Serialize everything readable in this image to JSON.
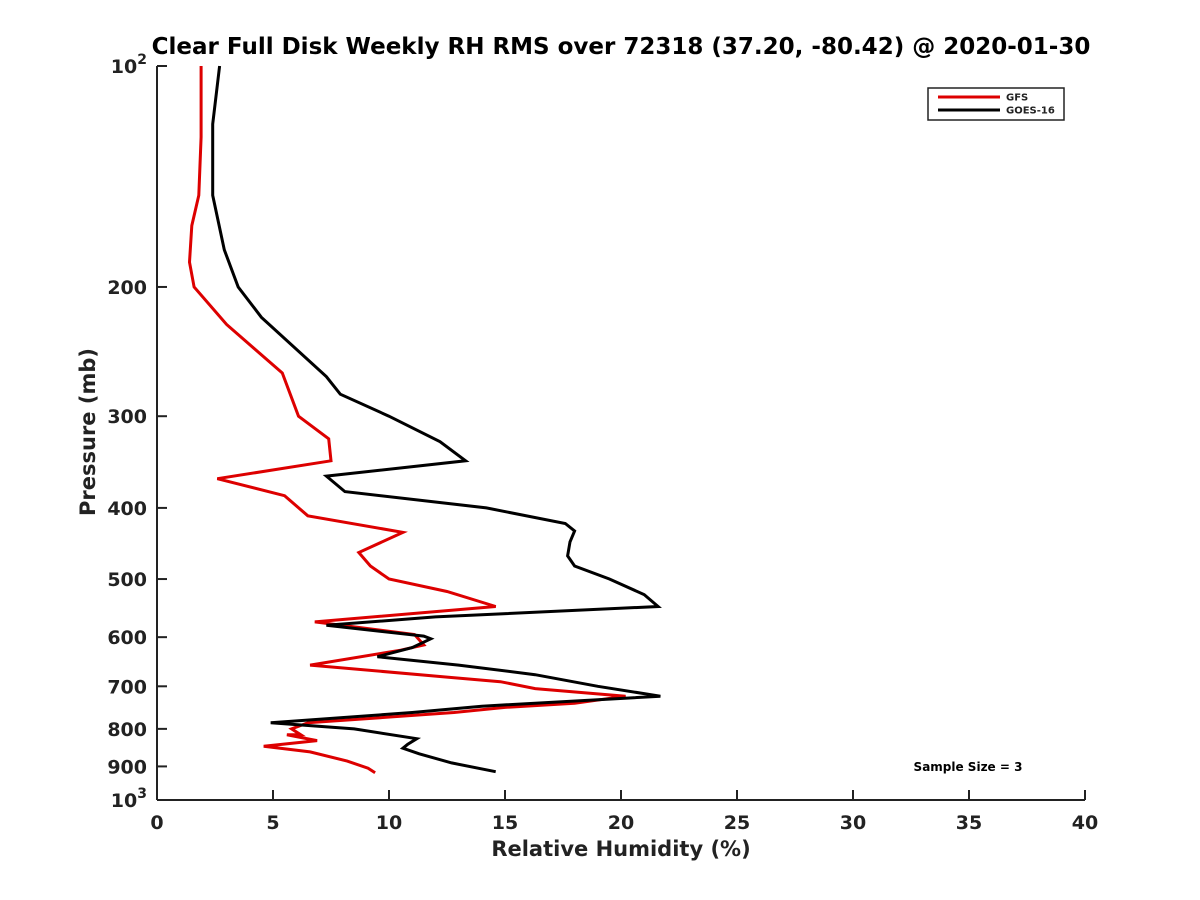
{
  "chart_data": {
    "type": "line",
    "title": "Clear Full Disk Weekly RH RMS over 72318 (37.20, -80.42) @ 2020-01-30",
    "xlabel": "Relative Humidity (%)",
    "ylabel": "Pressure (mb)",
    "xlim": [
      0,
      40
    ],
    "ylim": [
      100,
      1000
    ],
    "y_scale": "log",
    "y_reversed": true,
    "x_ticks": [
      0,
      5,
      10,
      15,
      20,
      25,
      30,
      35,
      40
    ],
    "x_tick_labels": [
      "0",
      "5",
      "10",
      "15",
      "20",
      "25",
      "30",
      "35",
      "40"
    ],
    "y_ticks": [
      100,
      200,
      300,
      400,
      500,
      600,
      700,
      800,
      900,
      1000
    ],
    "y_tick_labels": [
      {
        "base": "10",
        "exp": "2"
      },
      {
        "base": "200",
        "exp": ""
      },
      {
        "base": "300",
        "exp": ""
      },
      {
        "base": "400",
        "exp": ""
      },
      {
        "base": "500",
        "exp": ""
      },
      {
        "base": "600",
        "exp": ""
      },
      {
        "base": "700",
        "exp": ""
      },
      {
        "base": "800",
        "exp": ""
      },
      {
        "base": "900",
        "exp": ""
      },
      {
        "base": "10",
        "exp": "3"
      }
    ],
    "grid": false,
    "legend_position": "top-right",
    "annotation": "Sample Size = 3",
    "series": [
      {
        "name": "GFS",
        "color": "#dd0000",
        "points": [
          {
            "x": 1.9,
            "y": 100
          },
          {
            "x": 1.9,
            "y": 125
          },
          {
            "x": 1.8,
            "y": 150
          },
          {
            "x": 1.5,
            "y": 165
          },
          {
            "x": 1.4,
            "y": 185
          },
          {
            "x": 1.6,
            "y": 200
          },
          {
            "x": 3.0,
            "y": 225
          },
          {
            "x": 5.4,
            "y": 262
          },
          {
            "x": 6.1,
            "y": 300
          },
          {
            "x": 7.4,
            "y": 322
          },
          {
            "x": 7.5,
            "y": 345
          },
          {
            "x": 2.6,
            "y": 365
          },
          {
            "x": 5.5,
            "y": 385
          },
          {
            "x": 6.5,
            "y": 410
          },
          {
            "x": 10.6,
            "y": 432
          },
          {
            "x": 8.7,
            "y": 460
          },
          {
            "x": 9.2,
            "y": 480
          },
          {
            "x": 10.0,
            "y": 500
          },
          {
            "x": 12.5,
            "y": 520
          },
          {
            "x": 14.6,
            "y": 545
          },
          {
            "x": 6.8,
            "y": 572
          },
          {
            "x": 11.1,
            "y": 595
          },
          {
            "x": 11.5,
            "y": 615
          },
          {
            "x": 10.5,
            "y": 625
          },
          {
            "x": 6.6,
            "y": 655
          },
          {
            "x": 12.5,
            "y": 680
          },
          {
            "x": 14.8,
            "y": 690
          },
          {
            "x": 16.3,
            "y": 705
          },
          {
            "x": 20.2,
            "y": 722
          },
          {
            "x": 18.0,
            "y": 738
          },
          {
            "x": 15.0,
            "y": 748
          },
          {
            "x": 12.8,
            "y": 760
          },
          {
            "x": 6.5,
            "y": 785
          },
          {
            "x": 5.8,
            "y": 800
          },
          {
            "x": 6.2,
            "y": 815
          },
          {
            "x": 5.6,
            "y": 815
          },
          {
            "x": 6.9,
            "y": 830
          },
          {
            "x": 4.6,
            "y": 845
          },
          {
            "x": 6.6,
            "y": 860
          },
          {
            "x": 8.2,
            "y": 885
          },
          {
            "x": 9.1,
            "y": 905
          },
          {
            "x": 9.4,
            "y": 918
          }
        ]
      },
      {
        "name": "GOES-16",
        "color": "#000000",
        "points": [
          {
            "x": 2.7,
            "y": 100
          },
          {
            "x": 2.4,
            "y": 120
          },
          {
            "x": 2.4,
            "y": 150
          },
          {
            "x": 2.9,
            "y": 178
          },
          {
            "x": 3.5,
            "y": 200
          },
          {
            "x": 4.5,
            "y": 220
          },
          {
            "x": 7.3,
            "y": 265
          },
          {
            "x": 7.9,
            "y": 280
          },
          {
            "x": 10.0,
            "y": 300
          },
          {
            "x": 12.2,
            "y": 325
          },
          {
            "x": 13.3,
            "y": 345
          },
          {
            "x": 7.3,
            "y": 362
          },
          {
            "x": 8.1,
            "y": 380
          },
          {
            "x": 14.2,
            "y": 400
          },
          {
            "x": 17.6,
            "y": 420
          },
          {
            "x": 18.0,
            "y": 430
          },
          {
            "x": 17.8,
            "y": 445
          },
          {
            "x": 17.7,
            "y": 465
          },
          {
            "x": 18.0,
            "y": 480
          },
          {
            "x": 19.5,
            "y": 500
          },
          {
            "x": 21.0,
            "y": 525
          },
          {
            "x": 21.6,
            "y": 545
          },
          {
            "x": 12.0,
            "y": 563
          },
          {
            "x": 7.3,
            "y": 578
          },
          {
            "x": 11.5,
            "y": 598
          },
          {
            "x": 11.8,
            "y": 603
          },
          {
            "x": 11.0,
            "y": 620
          },
          {
            "x": 9.5,
            "y": 638
          },
          {
            "x": 13.0,
            "y": 655
          },
          {
            "x": 16.3,
            "y": 675
          },
          {
            "x": 19.0,
            "y": 700
          },
          {
            "x": 21.7,
            "y": 722
          },
          {
            "x": 14.0,
            "y": 745
          },
          {
            "x": 11.0,
            "y": 760
          },
          {
            "x": 4.9,
            "y": 785
          },
          {
            "x": 8.5,
            "y": 800
          },
          {
            "x": 11.2,
            "y": 825
          },
          {
            "x": 10.8,
            "y": 840
          },
          {
            "x": 10.6,
            "y": 850
          },
          {
            "x": 11.3,
            "y": 865
          },
          {
            "x": 12.7,
            "y": 890
          },
          {
            "x": 14.6,
            "y": 915
          }
        ]
      }
    ]
  }
}
